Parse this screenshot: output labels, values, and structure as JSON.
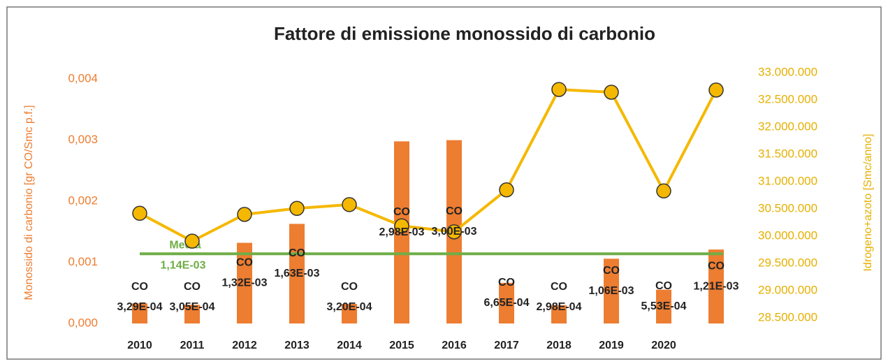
{
  "chart_data": {
    "type": "bar-line",
    "title": "Fattore di emissione monossido di carbonio",
    "y_label": "Monossido di carbonio [gr CO/Smc p.f.]",
    "y2_label": "Idrogeno+azoto  [Smc/anno]",
    "categories": [
      "2010",
      "2011",
      "2012",
      "2013",
      "2014",
      "2015",
      "2016",
      "2017",
      "2018",
      "2019",
      "2020",
      null
    ],
    "series": [
      {
        "name": "CO",
        "type": "bar",
        "color": "#ed7d31",
        "axis": "y",
        "values": [
          0.000329,
          0.000305,
          0.00132,
          0.00163,
          0.00032,
          0.00298,
          0.003,
          0.000665,
          0.000298,
          0.00106,
          0.000553,
          0.00121
        ],
        "value_labels": [
          "3,29E-04",
          "3,05E-04",
          "1,32E-03",
          "1,63E-03",
          "3,20E-04",
          "2,98E-03",
          "3,00E-03",
          "6,65E-04",
          "2,98E-04",
          "1,06E-03",
          "5,53E-04",
          "1,21E-03"
        ]
      },
      {
        "type": "line",
        "color": "#f5b800",
        "axis": "y2",
        "values": [
          30420000,
          29910000,
          30400000,
          30510000,
          30580000,
          30190000,
          30080000,
          30850000,
          32690000,
          32640000,
          30830000,
          32680000
        ]
      }
    ],
    "media": {
      "label": "Media",
      "value": 0.00114,
      "value_label": "1,14E-03",
      "color": "#70ad47"
    },
    "ylim": [
      0,
      0.00415
    ],
    "yticks": [
      {
        "value": 0,
        "label": "0,000"
      },
      {
        "value": 0.001,
        "label": "0,001"
      },
      {
        "value": 0.002,
        "label": "0,002"
      },
      {
        "value": 0.003,
        "label": "0,003"
      },
      {
        "value": 0.004,
        "label": "0,004"
      }
    ],
    "y2lim": [
      28400000,
      33050000
    ],
    "y2ticks": [
      {
        "value": 28500000,
        "label": "28.500.000"
      },
      {
        "value": 29000000,
        "label": "29.000.000"
      },
      {
        "value": 29500000,
        "label": "29.500.000"
      },
      {
        "value": 30000000,
        "label": "30.000.000"
      },
      {
        "value": 30500000,
        "label": "30.500.000"
      },
      {
        "value": 31000000,
        "label": "31.000.000"
      },
      {
        "value": 31500000,
        "label": "31.500.000"
      },
      {
        "value": 32000000,
        "label": "32.000.000"
      },
      {
        "value": 32500000,
        "label": "32.500.000"
      },
      {
        "value": 33000000,
        "label": "33.000.000"
      }
    ],
    "grid": false
  }
}
